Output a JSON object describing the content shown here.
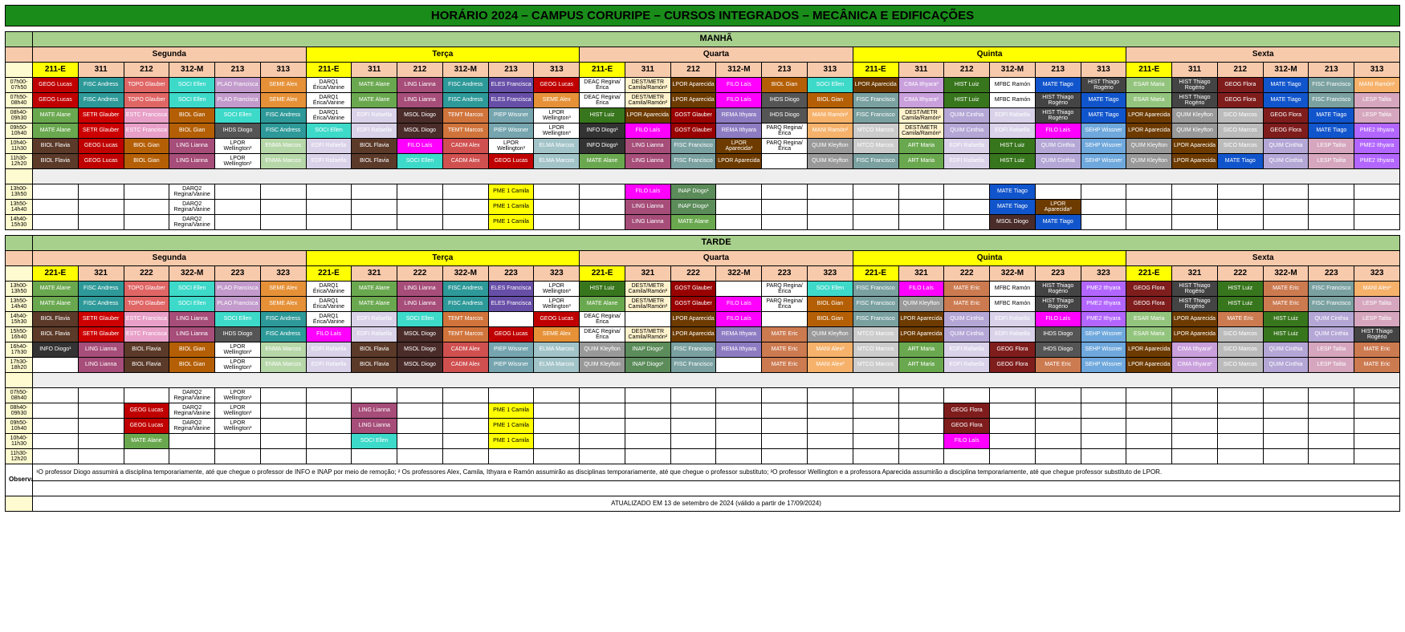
{
  "title": "HORÁRIO 2024 – CAMPUS CORURIPE – CURSOS INTEGRADOS – MECÂNICA E EDIFICAÇÕES",
  "periods": [
    "MANHÃ",
    "TARDE"
  ],
  "days": [
    "Segunda",
    "Terça",
    "Quarta",
    "Quinta",
    "Sexta"
  ],
  "turmas_manha": [
    "211-E",
    "311",
    "212",
    "312-M",
    "213",
    "313"
  ],
  "turmas_tarde": [
    "221-E",
    "321",
    "222",
    "322-M",
    "223",
    "323"
  ],
  "times_main": [
    "07h00-07h50",
    "07h50-08h40",
    "08h40-09h30",
    "09h50-10h40",
    "10h40-11h30",
    "11h30-12h20"
  ],
  "times_break": [
    "13h00-13h50",
    "13h50-14h40",
    "14h40-15h30"
  ],
  "times_tarde": [
    "13h00-13h50",
    "13h50-14h40",
    "14h40-15h30",
    "15h50-16h40",
    "16h40-17h30",
    "17h30-18h20"
  ],
  "times_extra": [
    "07h50-08h40",
    "08h40-09h30",
    "09h50-10h40",
    "10h40-11h30",
    "11h30-12h20"
  ],
  "obs": "¹O professor Diogo assumirá a disciplina temporariamente, até que chegue o professor de INFO e INAP por meio de remoção; ² Os professores Alex, Camila, Ithyara e Ramón assumirão as disciplinas temporariamente, até que chegue o professor substituto; ³O professor Wellington e a professora Aparecida assumirão a disciplina temporariamente, até que chegue professor substituto de LPOR.",
  "obs_label": "Observações",
  "footer": "ATUALIZADO EM 13 de setembro de 2024 (válido a partir de 17/09/2024)",
  "colors": {
    "GEOG Lucas": "#c00000",
    "FISC Andress": "#2e9999",
    "TOPO Glauber": "#e06666",
    "SOCI Ellen": "#3dd9c9",
    "PLAO Francisca": "#c29acb",
    "SEME Alex": "#e69138",
    "DARQ1 Érica/Vanine": "#fff",
    "MATE Alane": "#6aa84f",
    "LING Lianna": "#a64d79",
    "ESTC Francisca": "#e8a0c8",
    "BIOL Gian": "#b45f06",
    "IHDS Diogo": "#555",
    "FISC Francisco": "#7aa0a0",
    "DEST/METR Camila/Ramón²": "#fff2cc",
    "DEAC Regina/Érica": "#fff",
    "LPOR Aparecida": "#6d3b00",
    "FILO Laís": "#ff00ff",
    "HIST Luiz": "#38761d",
    "SETR Glauber": "#cc0000",
    "MSOL Diogo": "#4a2c2a",
    "TEMT Marcos": "#d0743c",
    "PIEP Wissner": "#76a5af",
    "LPOR Wellington³": "#fff",
    "GOST Glauber": "#990000",
    "REMA Ithyara": "#8e7cc3",
    "PARQ Regina/Érica": "#fff",
    "MANI Ramón²": "#f6b26b",
    "MTCO Marcos": "#ccc",
    "QUIM Cinthia": "#b4a7d6",
    "EDFI Rafaella": "#d9d2e9",
    "HIST Thiago Rogério": "#444",
    "MATE Tiago": "#1155cc",
    "ESAR Maria": "#93c47d",
    "GEOG Flora": "#7f1d1d",
    "BIOL Flavia": "#5b3a29",
    "ENMA Marcos": "#b6d7a8",
    "CADM Alex": "#d05050",
    "ELMA Marcos": "#a2c4c9",
    "INFO Diogo¹": "#333",
    "ELES Francisca": "#674ea7",
    "ART Maria": "#6aa84f",
    "MFBC Ramón": "#fff",
    "QUIM Kleyfton": "#999",
    "SICO Marcos": "#bbb",
    "SEHP Wissner": "#6fa8dc",
    "LESP Talita": "#d5a6bd",
    "CIMA Ithyara²": "#c9a0dc",
    "PME 1 Camila": "#ffff00",
    "INAP Diogo¹": "#5b8c5a",
    "DARQ2 Regina/Vanine": "#fff",
    "LPOR Aparecida³": "#6d3b00",
    "PME2 Ithyara": "#b266ff",
    "MATE Eric": "#cc7a50",
    "MANI Alex²": "#f6b26b"
  },
  "fg": {
    "DARQ1 Érica/Vanine": "#000",
    "DEAC Regina/Érica": "#000",
    "DEST/METR Camila/Ramón²": "#000",
    "LPOR Wellington³": "#000",
    "PARQ Regina/Érica": "#000",
    "MFBC Ramón": "#000",
    "PME 1 Camila": "#000",
    "DARQ2 Regina/Vanine": "#000",
    "INFO Diogo¹": "#fff",
    "MSOL Diogo": "#fff",
    "HIST Thiago Rogério": "#fff",
    "LPOR Aparecida": "#fff",
    "LPOR Aparecida³": "#fff",
    "GEOG Flora": "#fff",
    "IHDS Diogo": "#fff",
    "BIOL Flavia": "#fff"
  },
  "manha": [
    [
      "GEOG Lucas",
      "FISC Andress",
      "TOPO Glauber",
      "SOCI Ellen",
      "PLAO Francisca",
      "SEME Alex",
      "DARQ1 Érica/Vanine",
      "MATE Alane",
      "LING Lianna",
      "FISC Andress",
      "ELES Francisca",
      "GEOG Lucas",
      "DEAC Regina/Érica",
      "DEST/METR Camila/Ramón²",
      "LPOR Aparecida",
      "FILO Laís",
      "BIOL Gian",
      "SOCI Ellen",
      "LPOR Aparecida",
      "CIMA Ithyara²",
      "HIST Luiz",
      "MFBC Ramón",
      "MATE Tiago",
      "HIST Thiago Rogério",
      "ESAR Maria",
      "HIST Thiago Rogério",
      "GEOG Flora",
      "MATE Tiago",
      "FISC Francisco",
      "MANI Ramón²"
    ],
    [
      "GEOG Lucas",
      "FISC Andress",
      "TOPO Glauber",
      "SOCI Ellen",
      "PLAO Francisca",
      "SEME Alex",
      "DARQ1 Érica/Vanine",
      "MATE Alane",
      "LING Lianna",
      "FISC Andress",
      "ELES Francisca",
      "SEME Alex",
      "DEAC Regina/Érica",
      "DEST/METR Camila/Ramón²",
      "LPOR Aparecida",
      "FILO Laís",
      "IHDS Diogo",
      "BIOL Gian",
      "FISC Francisco",
      "CIMA Ithyara²",
      "HIST Luiz",
      "MFBC Ramón",
      "HIST Thiago Rogério",
      "MATE Tiago",
      "ESAR Maria",
      "HIST Thiago Rogério",
      "GEOG Flora",
      "MATE Tiago",
      "FISC Francisco",
      "LESP Talita"
    ],
    [
      "MATE Alane",
      "SETR Glauber",
      "ESTC Francisca",
      "BIOL Gian",
      "SOCI Ellen",
      "FISC Andress",
      "DARQ1 Érica/Vanine",
      "EDFI Rafaella",
      "MSOL Diogo",
      "TEMT Marcos",
      "PIEP Wissner",
      "LPOR Wellington³",
      "HIST Luiz",
      "LPOR Aparecida",
      "GOST Glauber",
      "REMA Ithyara",
      "IHDS Diogo",
      "MANI Ramón²",
      "FISC Francisco",
      "DEST/METR Camila/Ramón²",
      "QUIM Cinthia",
      "EDFI Rafaella",
      "HIST Thiago Rogério",
      "MATE Tiago",
      "LPOR Aparecida",
      "QUIM Kleyfton",
      "SICO Marcos",
      "GEOG Flora",
      "MATE Tiago",
      "LESP Talita"
    ],
    [
      "MATE Alane",
      "SETR Glauber",
      "ESTC Francisca",
      "BIOL Gian",
      "IHDS Diogo",
      "FISC Andress",
      "SOCI Ellen",
      "EDFI Rafaella",
      "MSOL Diogo",
      "TEMT Marcos",
      "PIEP Wissner",
      "LPOR Wellington³",
      "INFO Diogo¹",
      "FILO Laís",
      "GOST Glauber",
      "REMA Ithyara",
      "PARQ Regina/Érica",
      "MANI Ramón²",
      "MTCO Marcos",
      "DEST/METR Camila/Ramón²",
      "QUIM Cinthia",
      "EDFI Rafaella",
      "FILO Laís",
      "SEHP Wissner",
      "LPOR Aparecida",
      "QUIM Kleyfton",
      "SICO Marcos",
      "GEOG Flora",
      "MATE Tiago",
      "PME2 Ithyara"
    ],
    [
      "BIOL Flavia",
      "GEOG Lucas",
      "BIOL Gian",
      "LING Lianna",
      "LPOR Wellington³",
      "ENMA Marcos",
      "EDFI Rafaella",
      "BIOL Flavia",
      "FILO Laís",
      "CADM Alex",
      "LPOR Wellington³",
      "ELMA Marcos",
      "INFO Diogo¹",
      "LING Lianna",
      "FISC Francisco",
      "LPOR Aparecida³",
      "PARQ Regina/Érica",
      "QUIM Kleyfton",
      "MTCO Marcos",
      "ART Maria",
      "EDFI Rafaella",
      "HIST Luiz",
      "QUIM Cinthia",
      "SEHP Wissner",
      "QUIM Kleyfton",
      "LPOR Aparecida",
      "SICO Marcos",
      "QUIM Cinthia",
      "LESP Talita",
      "PME2 Ithyara"
    ],
    [
      "BIOL Flavia",
      "GEOG Lucas",
      "BIOL Gian",
      "LING Lianna",
      "LPOR Wellington³",
      "ENMA Marcos",
      "EDFI Rafaella",
      "BIOL Flavia",
      "SOCI Ellen",
      "CADM Alex",
      "GEOG Lucas",
      "ELMA Marcos",
      "MATE Alane",
      "LING Lianna",
      "FISC Francisco",
      "LPOR Aparecida",
      "",
      "QUIM Kleyfton",
      "FISC Francisco",
      "ART Maria",
      "EDFI Rafaella",
      "HIST Luiz",
      "QUIM Cinthia",
      "SEHP Wissner",
      "QUIM Kleyfton",
      "LPOR Aparecida",
      "MATE Tiago",
      "QUIM Cinthia",
      "LESP Talita",
      "PME2 Ithyara"
    ]
  ],
  "manha_break": [
    [
      "",
      "",
      "",
      "DARQ2 Regina/Vanine",
      "",
      "",
      "",
      "",
      "",
      "",
      "PME 1 Camila",
      "",
      "",
      "FILO Laís",
      "INAP Diogo¹",
      "",
      "",
      "",
      "",
      "",
      "",
      "MATE Tiago",
      "",
      "",
      "",
      "",
      "",
      "",
      "",
      ""
    ],
    [
      "",
      "",
      "",
      "DARQ2 Regina/Vanine",
      "",
      "",
      "",
      "",
      "",
      "",
      "PME 1 Camila",
      "",
      "",
      "LING Lianna",
      "INAP Diogo¹",
      "",
      "",
      "",
      "",
      "",
      "",
      "MATE Tiago",
      "LPOR Aparecida³",
      "",
      "",
      "",
      "",
      "",
      "",
      ""
    ],
    [
      "",
      "",
      "",
      "DARQ2 Regina/Vanine",
      "",
      "",
      "",
      "",
      "",
      "",
      "PME 1 Camila",
      "",
      "",
      "LING Lianna",
      "MATE Alane",
      "",
      "",
      "",
      "",
      "",
      "",
      "MSOL Diogo",
      "MATE Tiago",
      "",
      "",
      "",
      "",
      "",
      "",
      ""
    ]
  ],
  "tarde": [
    [
      "MATE Alane",
      "FISC Andress",
      "TOPO Glauber",
      "SOCI Ellen",
      "PLAO Francisca",
      "SEME Alex",
      "DARQ1 Érica/Vanine",
      "MATE Alane",
      "LING Lianna",
      "FISC Andress",
      "ELES Francisca",
      "LPOR Wellington³",
      "HIST Luiz",
      "DEST/METR Camila/Ramón²",
      "GOST Glauber",
      "",
      "PARQ Regina/Érica",
      "SOCI Ellen",
      "FISC Francisco",
      "FILO Laís",
      "MATE Eric",
      "MFBC Ramón",
      "HIST Thiago Rogério",
      "PME2 Ithyara",
      "GEOG Flora",
      "HIST Thiago Rogério",
      "HIST Luiz",
      "MATE Eric",
      "FISC Francisco",
      "MANI Alex²"
    ],
    [
      "MATE Alane",
      "FISC Andress",
      "TOPO Glauber",
      "SOCI Ellen",
      "PLAO Francisca",
      "SEME Alex",
      "DARQ1 Érica/Vanine",
      "MATE Alane",
      "LING Lianna",
      "FISC Andress",
      "ELES Francisca",
      "LPOR Wellington³",
      "MATE Alane",
      "DEST/METR Camila/Ramón²",
      "GOST Glauber",
      "FILO Laís",
      "PARQ Regina/Érica",
      "BIOL Gian",
      "FISC Francisco",
      "QUIM Kleyfton",
      "MATE Eric",
      "MFBC Ramón",
      "HIST Thiago Rogério",
      "PME2 Ithyara",
      "GEOG Flora",
      "HIST Thiago Rogério",
      "HIST Luiz",
      "MATE Eric",
      "FISC Francisco",
      "LESP Talita"
    ],
    [
      "BIOL Flavia",
      "SETR Glauber",
      "ESTC Francisca",
      "LING Lianna",
      "SOCI Ellen",
      "FISC Andress",
      "DARQ1 Érica/Vanine",
      "EDFI Rafaella",
      "SOCI Ellen",
      "TEMT Marcos",
      "",
      "GEOG Lucas",
      "DEAC Regina/Érica",
      "",
      "LPOR Aparecida",
      "FILO Laís",
      "",
      "BIOL Gian",
      "FISC Francisco",
      "LPOR Aparecida",
      "QUIM Cinthia",
      "EDFI Rafaella",
      "FILO Laís",
      "PME2 Ithyara",
      "ESAR Maria",
      "LPOR Aparecida",
      "MATE Eric",
      "HIST Luiz",
      "QUIM Cinthia",
      "LESP Talita"
    ],
    [
      "BIOL Flavia",
      "SETR Glauber",
      "ESTC Francisca",
      "LING Lianna",
      "IHDS Diogo",
      "FISC Andress",
      "FILO Laís",
      "EDFI Rafaella",
      "MSOL Diogo",
      "TEMT Marcos",
      "GEOG Lucas",
      "SEME Alex",
      "DEAC Regina/Érica",
      "DEST/METR Camila/Ramón²",
      "LPOR Aparecida",
      "REMA Ithyara",
      "MATE Eric",
      "QUIM Kleyfton",
      "MTCO Marcos",
      "LPOR Aparecida",
      "QUIM Cinthia",
      "EDFI Rafaella",
      "IHDS Diogo",
      "SEHP Wissner",
      "ESAR Maria",
      "LPOR Aparecida",
      "SICO Marcos",
      "HIST Luiz",
      "QUIM Cinthia",
      "HIST Thiago Rogério"
    ],
    [
      "INFO Diogo¹",
      "LING Lianna",
      "BIOL Flavia",
      "BIOL Gian",
      "LPOR Wellington³",
      "ENMA Marcos",
      "EDFI Rafaella",
      "BIOL Flavia",
      "MSOL Diogo",
      "CADM Alex",
      "PIEP Wissner",
      "ELMA Marcos",
      "QUIM Kleyfton",
      "INAP Diogo¹",
      "FISC Francisco",
      "REMA Ithyara",
      "MATE Eric",
      "MANI Alex²",
      "MTCO Marcos",
      "ART Maria",
      "EDFI Rafaella",
      "GEOG Flora",
      "IHDS Diogo",
      "SEHP Wissner",
      "LPOR Aparecida",
      "CIMA Ithyara²",
      "SICO Marcos",
      "QUIM Cinthia",
      "LESP Talita",
      "MATE Eric"
    ],
    [
      "",
      "LING Lianna",
      "BIOL Flavia",
      "BIOL Gian",
      "LPOR Wellington³",
      "ENMA Marcos",
      "EDFI Rafaella",
      "BIOL Flavia",
      "MSOL Diogo",
      "CADM Alex",
      "PIEP Wissner",
      "ELMA Marcos",
      "QUIM Kleyfton",
      "INAP Diogo¹",
      "FISC Francisco",
      "",
      "MATE Eric",
      "MANI Alex²",
      "MTCO Marcos",
      "ART Maria",
      "EDFI Rafaella",
      "GEOG Flora",
      "MATE Eric",
      "SEHP Wissner",
      "LPOR Aparecida",
      "CIMA Ithyara²",
      "SICO Marcos",
      "QUIM Cinthia",
      "LESP Talita",
      "MATE Eric"
    ]
  ],
  "extra": [
    [
      "",
      "",
      "",
      "DARQ2 Regina/Vanine",
      "LPOR Wellington³",
      "",
      "",
      "",
      "",
      "",
      "",
      "",
      "",
      "",
      "",
      "",
      "",
      "",
      "",
      "",
      "",
      "",
      "",
      "",
      "",
      "",
      "",
      "",
      "",
      ""
    ],
    [
      "",
      "",
      "GEOG Lucas",
      "DARQ2 Regina/Vanine",
      "LPOR Wellington³",
      "",
      "",
      "LING Lianna",
      "",
      "",
      "PME 1 Camila",
      "",
      "",
      "",
      "",
      "",
      "",
      "",
      "",
      "",
      "GEOG Flora",
      "",
      "",
      "",
      "",
      "",
      "",
      "",
      "",
      ""
    ],
    [
      "",
      "",
      "GEOG Lucas",
      "DARQ2 Regina/Vanine",
      "LPOR Wellington³",
      "",
      "",
      "LING Lianna",
      "",
      "",
      "PME 1 Camila",
      "",
      "",
      "",
      "",
      "",
      "",
      "",
      "",
      "",
      "GEOG Flora",
      "",
      "",
      "",
      "",
      "",
      "",
      "",
      "",
      ""
    ],
    [
      "",
      "",
      "MATE Alane",
      "",
      "",
      "",
      "",
      "SOCI Ellen",
      "",
      "",
      "PME 1 Camila",
      "",
      "",
      "",
      "",
      "",
      "",
      "",
      "",
      "",
      "FILO Laís",
      "",
      "",
      "",
      "",
      "",
      "",
      "",
      "",
      ""
    ],
    [
      "",
      "",
      "",
      "",
      "",
      "",
      "",
      "",
      "",
      "",
      "",
      "",
      "",
      "",
      "",
      "",
      "",
      "",
      "",
      "",
      "",
      "",
      "",
      "",
      "",
      "",
      "",
      "",
      "",
      ""
    ]
  ]
}
